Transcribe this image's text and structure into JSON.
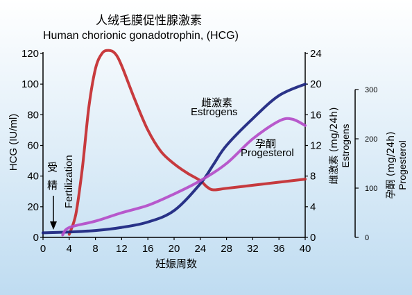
{
  "chart_data": {
    "type": "line",
    "title_cn": "人绒毛膜促性腺激素",
    "title_en": "Human chorionic gonadotrophin, (HCG)",
    "x": {
      "label": "妊娠周数",
      "min": 0,
      "max": 40,
      "ticks": [
        0,
        4,
        8,
        12,
        16,
        20,
        24,
        28,
        32,
        36,
        40
      ]
    },
    "axes": {
      "hcg": {
        "label": "HCG (IU/ml)",
        "min": 0,
        "max": 120,
        "ticks": [
          0,
          20,
          40,
          60,
          80,
          100,
          120
        ]
      },
      "estrogen": {
        "label_cn": "雌激素 (mg/24h)",
        "label_en": "Estrogens",
        "min": 0,
        "max": 24,
        "ticks": [
          0,
          4,
          8,
          12,
          16,
          20,
          24
        ]
      },
      "progesterone": {
        "label_cn": "孕酮 (mg/24h)",
        "label_en": "Progesterol",
        "min": 0,
        "max": 300,
        "ticks": [
          0,
          100,
          200,
          300
        ]
      }
    },
    "annotations": {
      "fertilization_cn": [
        "受",
        "精"
      ],
      "fertilization_en": "Fertilization",
      "estrogen_cn": "雌激素",
      "estrogen_en": "Estrogens",
      "progesterone_cn": "孕酮",
      "progesterone_en": "Progesterol"
    },
    "series": [
      {
        "key": "hcg",
        "axis": "hcg",
        "color": "#c42a2e",
        "points": [
          [
            4,
            2
          ],
          [
            5,
            15
          ],
          [
            6,
            45
          ],
          [
            7,
            85
          ],
          [
            8,
            110
          ],
          [
            9,
            120
          ],
          [
            10,
            122
          ],
          [
            11,
            120
          ],
          [
            12,
            112
          ],
          [
            14,
            90
          ],
          [
            16,
            70
          ],
          [
            18,
            56
          ],
          [
            20,
            48
          ],
          [
            22,
            42
          ],
          [
            24,
            37
          ],
          [
            25,
            33
          ],
          [
            26,
            31
          ],
          [
            28,
            32
          ],
          [
            32,
            34
          ],
          [
            36,
            36
          ],
          [
            40,
            38
          ]
        ]
      },
      {
        "key": "estrogen",
        "axis": "estrogen",
        "color": "#1a237e",
        "points": [
          [
            0,
            0.6
          ],
          [
            4,
            0.7
          ],
          [
            8,
            0.9
          ],
          [
            12,
            1.3
          ],
          [
            16,
            2
          ],
          [
            20,
            3.5
          ],
          [
            24,
            7
          ],
          [
            26,
            9.5
          ],
          [
            28,
            12
          ],
          [
            32,
            15.5
          ],
          [
            36,
            18.5
          ],
          [
            40,
            20
          ]
        ]
      },
      {
        "key": "progesterone",
        "axis": "progesterone",
        "color": "#b44cc8",
        "points": [
          [
            3,
            5
          ],
          [
            4,
            20
          ],
          [
            8,
            33
          ],
          [
            12,
            50
          ],
          [
            16,
            65
          ],
          [
            20,
            88
          ],
          [
            24,
            115
          ],
          [
            28,
            150
          ],
          [
            32,
            200
          ],
          [
            36,
            236
          ],
          [
            38,
            240
          ],
          [
            40,
            227
          ]
        ]
      }
    ],
    "background": {
      "top": "#ffffff",
      "bottom": "#bfdcf1"
    }
  }
}
